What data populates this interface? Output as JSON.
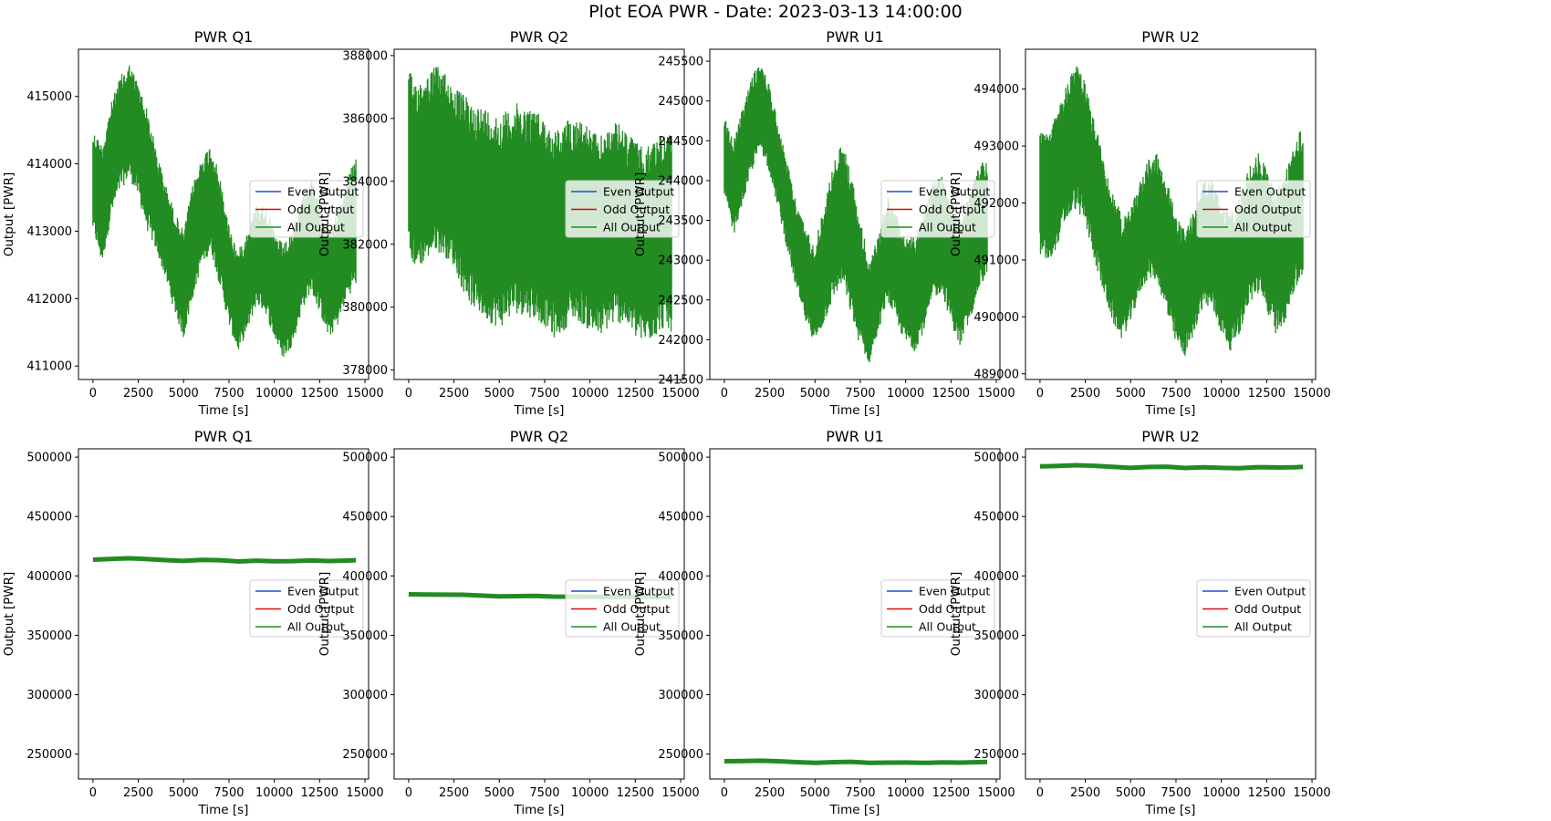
{
  "figure_title": "Plot EOA PWR - Date: 2023-03-13 14:00:00",
  "colors": {
    "even": "#1f4fd0",
    "odd": "#d40a0a",
    "all": "#228b22"
  },
  "legend_labels": [
    "Even Output",
    "Odd Output",
    "All Output"
  ],
  "chart_data": [
    {
      "type": "line",
      "title": "PWR Q1",
      "xlabel": "Time [s]",
      "ylabel": "Output [PWR]",
      "xlim": [
        -800,
        15200
      ],
      "ylim": [
        410800,
        415700
      ],
      "xticks": [
        0,
        2500,
        5000,
        7500,
        10000,
        12500,
        15000
      ],
      "yticks": [
        411000,
        412000,
        413000,
        414000,
        415000
      ],
      "legend": "center right",
      "band": true,
      "series": [
        {
          "name": "Even Output",
          "color": "#1f4fd0"
        },
        {
          "name": "Odd Output",
          "color": "#d40a0a"
        },
        {
          "name": "All Output",
          "color": "#228b22",
          "x": [
            0,
            500,
            1000,
            1500,
            2000,
            2500,
            3000,
            3500,
            4000,
            4500,
            5000,
            5500,
            6000,
            6500,
            7000,
            7500,
            8000,
            8500,
            9000,
            9500,
            10000,
            10500,
            11000,
            11500,
            12000,
            12500,
            13000,
            13500,
            14000,
            14500
          ],
          "y_min": [
            413000,
            412500,
            413200,
            413600,
            413800,
            413500,
            413000,
            412700,
            412300,
            411800,
            411400,
            412000,
            412500,
            412700,
            412200,
            411600,
            411200,
            411500,
            411900,
            411800,
            411400,
            411100,
            411300,
            411800,
            412100,
            411800,
            411400,
            411600,
            412000,
            412200
          ],
          "y_max": [
            414500,
            414300,
            414900,
            415300,
            415500,
            415200,
            414800,
            414200,
            413700,
            413300,
            413000,
            413700,
            414100,
            414300,
            413800,
            413100,
            412700,
            413000,
            413400,
            413400,
            413000,
            412800,
            413000,
            413500,
            413800,
            413400,
            413000,
            413300,
            413800,
            414100
          ]
        }
      ]
    },
    {
      "type": "line",
      "title": "PWR Q2",
      "xlabel": "Time [s]",
      "ylabel": "Output [PWR]",
      "xlim": [
        -800,
        15200
      ],
      "ylim": [
        377700,
        388200
      ],
      "xticks": [
        0,
        2500,
        5000,
        7500,
        10000,
        12500,
        15000
      ],
      "yticks": [
        378000,
        380000,
        382000,
        384000,
        386000,
        388000
      ],
      "legend": "center right",
      "band": true,
      "series": [
        {
          "name": "Even Output",
          "color": "#1f4fd0"
        },
        {
          "name": "Odd Output",
          "color": "#d40a0a"
        },
        {
          "name": "All Output",
          "color": "#228b22",
          "x": [
            0,
            500,
            1000,
            1500,
            2000,
            2500,
            3000,
            3500,
            4000,
            4500,
            5000,
            5500,
            6000,
            6500,
            7000,
            7500,
            8000,
            8500,
            9000,
            9500,
            10000,
            10500,
            11000,
            11500,
            12000,
            12500,
            13000,
            13500,
            14000,
            14500
          ],
          "y_min": [
            381500,
            381200,
            381500,
            381800,
            381600,
            381300,
            380500,
            380000,
            379700,
            379500,
            379300,
            379600,
            379800,
            379700,
            379600,
            379400,
            379000,
            379200,
            379600,
            379500,
            379200,
            379000,
            379300,
            379500,
            379400,
            379000,
            378800,
            379000,
            379300,
            379200
          ],
          "y_max": [
            387500,
            387200,
            387400,
            387700,
            387500,
            387000,
            386800,
            386500,
            386400,
            386300,
            386100,
            386300,
            386500,
            386400,
            386300,
            386000,
            385600,
            385800,
            386100,
            386000,
            385700,
            385400,
            385700,
            385900,
            385600,
            385300,
            385000,
            385300,
            385600,
            385500
          ]
        }
      ]
    },
    {
      "type": "line",
      "title": "PWR U1",
      "xlabel": "Time [s]",
      "ylabel": "Output [PWR]",
      "xlim": [
        -800,
        15200
      ],
      "ylim": [
        241500,
        245650
      ],
      "xticks": [
        0,
        2500,
        5000,
        7500,
        10000,
        12500,
        15000
      ],
      "yticks": [
        241500,
        242000,
        242500,
        243000,
        243500,
        244000,
        244500,
        245000,
        245500
      ],
      "legend": "center right",
      "band": true,
      "series": [
        {
          "name": "Even Output",
          "color": "#1f4fd0"
        },
        {
          "name": "Odd Output",
          "color": "#d40a0a"
        },
        {
          "name": "All Output",
          "color": "#228b22",
          "x": [
            0,
            500,
            1000,
            1500,
            2000,
            2500,
            3000,
            3500,
            4000,
            4500,
            5000,
            5500,
            6000,
            6500,
            7000,
            7500,
            8000,
            8500,
            9000,
            9500,
            10000,
            10500,
            11000,
            11500,
            12000,
            12500,
            13000,
            13500,
            14000,
            14500
          ],
          "y_min": [
            243800,
            243300,
            243700,
            244100,
            244400,
            244100,
            243600,
            243100,
            242600,
            242200,
            241950,
            242200,
            242500,
            242700,
            242300,
            241900,
            241700,
            242100,
            242500,
            242200,
            241950,
            241850,
            242100,
            242500,
            242600,
            242200,
            241900,
            242200,
            242600,
            242800
          ],
          "y_max": [
            244800,
            244500,
            244900,
            245300,
            245500,
            245200,
            244700,
            244200,
            243700,
            243400,
            243200,
            243700,
            244200,
            244500,
            244100,
            243500,
            243000,
            243300,
            243800,
            243600,
            243300,
            243300,
            243600,
            244000,
            244100,
            243800,
            243500,
            243800,
            244200,
            244300
          ]
        }
      ]
    },
    {
      "type": "line",
      "title": "PWR U2",
      "xlabel": "Time [s]",
      "ylabel": "Output [PWR]",
      "xlim": [
        -800,
        15200
      ],
      "ylim": [
        488900,
        494700
      ],
      "xticks": [
        0,
        2500,
        5000,
        7500,
        10000,
        12500,
        15000
      ],
      "yticks": [
        489000,
        490000,
        491000,
        492000,
        493000,
        494000
      ],
      "legend": "center right",
      "band": true,
      "series": [
        {
          "name": "Even Output",
          "color": "#1f4fd0"
        },
        {
          "name": "Odd Output",
          "color": "#d40a0a"
        },
        {
          "name": "All Output",
          "color": "#228b22",
          "x": [
            0,
            500,
            1000,
            1500,
            2000,
            2500,
            3000,
            3500,
            4000,
            4500,
            5000,
            5500,
            6000,
            6500,
            7000,
            7500,
            8000,
            8500,
            9000,
            9500,
            10000,
            10500,
            11000,
            11500,
            12000,
            12500,
            13000,
            13500,
            14000,
            14500
          ],
          "y_min": [
            491100,
            490900,
            491300,
            491700,
            491900,
            491600,
            491000,
            490400,
            489900,
            489600,
            489900,
            490400,
            490700,
            490600,
            490000,
            489500,
            489300,
            489700,
            490200,
            490100,
            489700,
            489400,
            489700,
            490200,
            490400,
            490100,
            489700,
            489900,
            490400,
            490700
          ],
          "y_max": [
            493300,
            493200,
            493700,
            494100,
            494500,
            494100,
            493500,
            492800,
            492200,
            491800,
            491900,
            492400,
            492800,
            492900,
            492400,
            491800,
            491500,
            491900,
            492400,
            492400,
            492000,
            491800,
            492100,
            492600,
            492900,
            492600,
            492200,
            492500,
            493000,
            493400
          ]
        }
      ]
    },
    {
      "type": "line",
      "title": "PWR Q1",
      "xlabel": "Time [s]",
      "ylabel": "Output [PWR]",
      "xlim": [
        -800,
        15200
      ],
      "ylim": [
        229000,
        507000
      ],
      "xticks": [
        0,
        2500,
        5000,
        7500,
        10000,
        12500,
        15000
      ],
      "yticks": [
        250000,
        300000,
        350000,
        400000,
        450000,
        500000
      ],
      "legend": "center right",
      "band": false,
      "series": [
        {
          "name": "Even Output",
          "color": "#1f4fd0"
        },
        {
          "name": "Odd Output",
          "color": "#d40a0a"
        },
        {
          "name": "All Output",
          "color": "#228b22",
          "x": [
            0,
            1000,
            2000,
            3000,
            4000,
            5000,
            6000,
            7000,
            8000,
            9000,
            10000,
            11000,
            12000,
            13000,
            14000,
            14500
          ],
          "y": [
            413700,
            414300,
            414800,
            414200,
            413300,
            412600,
            413500,
            413200,
            412200,
            412800,
            412300,
            412400,
            413000,
            412500,
            412900,
            413200
          ]
        }
      ]
    },
    {
      "type": "line",
      "title": "PWR Q2",
      "xlabel": "Time [s]",
      "ylabel": "Output [PWR]",
      "xlim": [
        -800,
        15200
      ],
      "ylim": [
        229000,
        507000
      ],
      "xticks": [
        0,
        2500,
        5000,
        7500,
        10000,
        12500,
        15000
      ],
      "yticks": [
        250000,
        300000,
        350000,
        400000,
        450000,
        500000
      ],
      "legend": "center right",
      "band": false,
      "series": [
        {
          "name": "Even Output",
          "color": "#1f4fd0"
        },
        {
          "name": "Odd Output",
          "color": "#d40a0a"
        },
        {
          "name": "All Output",
          "color": "#228b22",
          "x": [
            0,
            1000,
            2000,
            3000,
            4000,
            5000,
            6000,
            7000,
            8000,
            9000,
            10000,
            11000,
            12000,
            13000,
            14000,
            14500
          ],
          "y": [
            384500,
            384300,
            384200,
            384100,
            383500,
            382800,
            383000,
            383200,
            382600,
            382500,
            382400,
            382300,
            382500,
            382400,
            382200,
            382300
          ]
        }
      ]
    },
    {
      "type": "line",
      "title": "PWR U1",
      "xlabel": "Time [s]",
      "ylabel": "Output [PWR]",
      "xlim": [
        -800,
        15200
      ],
      "ylim": [
        229000,
        507000
      ],
      "xticks": [
        0,
        2500,
        5000,
        7500,
        10000,
        12500,
        15000
      ],
      "yticks": [
        250000,
        300000,
        350000,
        400000,
        450000,
        500000
      ],
      "legend": "center right",
      "band": false,
      "series": [
        {
          "name": "Even Output",
          "color": "#1f4fd0"
        },
        {
          "name": "Odd Output",
          "color": "#d40a0a"
        },
        {
          "name": "All Output",
          "color": "#228b22",
          "x": [
            0,
            1000,
            2000,
            3000,
            4000,
            5000,
            6000,
            7000,
            8000,
            9000,
            10000,
            11000,
            12000,
            13000,
            14000,
            14500
          ],
          "y": [
            244000,
            244200,
            244500,
            244000,
            243200,
            242600,
            243200,
            243500,
            242600,
            242800,
            242900,
            242600,
            243000,
            242800,
            243200,
            243400
          ]
        }
      ]
    },
    {
      "type": "line",
      "title": "PWR U2",
      "xlabel": "Time [s]",
      "ylabel": "Output [PWR]",
      "xlim": [
        -800,
        15200
      ],
      "ylim": [
        229000,
        507000
      ],
      "xticks": [
        0,
        2500,
        5000,
        7500,
        10000,
        12500,
        15000
      ],
      "yticks": [
        250000,
        300000,
        350000,
        400000,
        450000,
        500000
      ],
      "legend": "center right",
      "band": false,
      "series": [
        {
          "name": "Even Output",
          "color": "#1f4fd0"
        },
        {
          "name": "Odd Output",
          "color": "#d40a0a"
        },
        {
          "name": "All Output",
          "color": "#228b22",
          "x": [
            0,
            1000,
            2000,
            3000,
            4000,
            5000,
            6000,
            7000,
            8000,
            9000,
            10000,
            11000,
            12000,
            13000,
            14000,
            14500
          ],
          "y": [
            492200,
            492600,
            493200,
            492700,
            491800,
            491000,
            491700,
            491900,
            490900,
            491400,
            491000,
            490700,
            491500,
            491300,
            491400,
            491800
          ]
        }
      ]
    }
  ]
}
